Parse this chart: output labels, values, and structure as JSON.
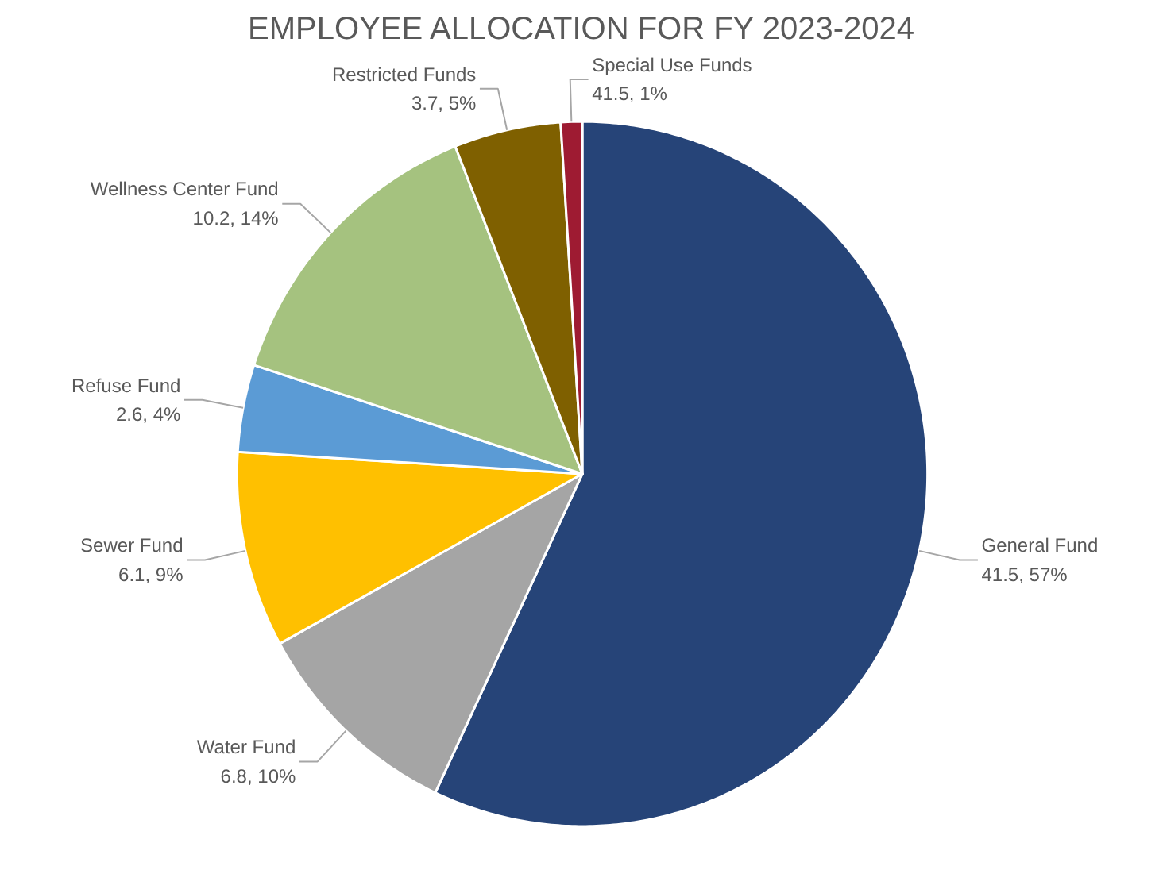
{
  "chart_data": {
    "type": "pie",
    "title": "EMPLOYEE ALLOCATION FOR FY 2023-2024",
    "categories": [
      "General Fund",
      "Water Fund",
      "Sewer Fund",
      "Refuse Fund",
      "Wellness Center Fund",
      "Restricted Funds",
      "Special Use Funds"
    ],
    "values": [
      57,
      10,
      9,
      4,
      14,
      5,
      1
    ],
    "value_labels": [
      "41.5, 57%",
      "6.8, 10%",
      "6.1, 9%",
      "2.6, 4%",
      "10.2, 14%",
      "3.7, 5%",
      "41.5, 1%"
    ],
    "colors": [
      "#264478",
      "#a5a5a5",
      "#ffc000",
      "#5b9bd5",
      "#a5c27f",
      "#7f6000",
      "#9e1b32"
    ],
    "legend": false
  }
}
